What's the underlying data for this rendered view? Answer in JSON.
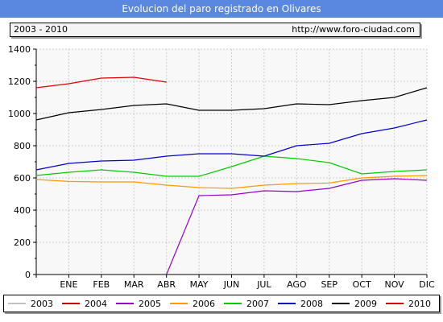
{
  "title": "Evolucion del paro registrado en Olivares",
  "subtitle_left": "2003 - 2010",
  "subtitle_right": "http://www.foro-ciudad.com",
  "chart_data": {
    "type": "line",
    "categories": [
      "",
      "ENE",
      "FEB",
      "MAR",
      "ABR",
      "MAY",
      "JUN",
      "JUL",
      "AGO",
      "SEP",
      "OCT",
      "NOV",
      "DIC"
    ],
    "ylim": [
      0,
      1400
    ],
    "yticks": [
      0,
      200,
      400,
      600,
      800,
      1000,
      1200,
      1400
    ],
    "grid": true,
    "legend_position": "bottom",
    "series": [
      {
        "name": "2003",
        "color": "#c0c0c0",
        "values": [
          null,
          null,
          null,
          null,
          null,
          null,
          null,
          null,
          null,
          null,
          null,
          null,
          null
        ]
      },
      {
        "name": "2004",
        "color": "#cc0000",
        "values": [
          null,
          null,
          null,
          null,
          null,
          null,
          null,
          null,
          null,
          null,
          null,
          null,
          null
        ]
      },
      {
        "name": "2005",
        "color": "#9900cc",
        "values": [
          null,
          null,
          null,
          null,
          0,
          490,
          495,
          520,
          515,
          535,
          585,
          595,
          585
        ]
      },
      {
        "name": "2006",
        "color": "#ff9900",
        "values": [
          590,
          578,
          575,
          575,
          555,
          540,
          535,
          555,
          565,
          568,
          600,
          610,
          615
        ]
      },
      {
        "name": "2007",
        "color": "#00cc00",
        "values": [
          615,
          635,
          650,
          635,
          610,
          610,
          670,
          735,
          720,
          695,
          625,
          640,
          650
        ]
      },
      {
        "name": "2008",
        "color": "#0000cc",
        "values": [
          650,
          690,
          705,
          710,
          735,
          750,
          750,
          735,
          800,
          815,
          875,
          910,
          960
        ]
      },
      {
        "name": "2009",
        "color": "#000000",
        "values": [
          960,
          1005,
          1025,
          1050,
          1060,
          1020,
          1020,
          1030,
          1060,
          1055,
          1080,
          1100,
          1160
        ]
      },
      {
        "name": "2010",
        "color": "#dd0000",
        "values": [
          1160,
          1185,
          1220,
          1225,
          1195,
          null,
          null,
          null,
          null,
          null,
          null,
          null,
          null
        ]
      }
    ]
  }
}
